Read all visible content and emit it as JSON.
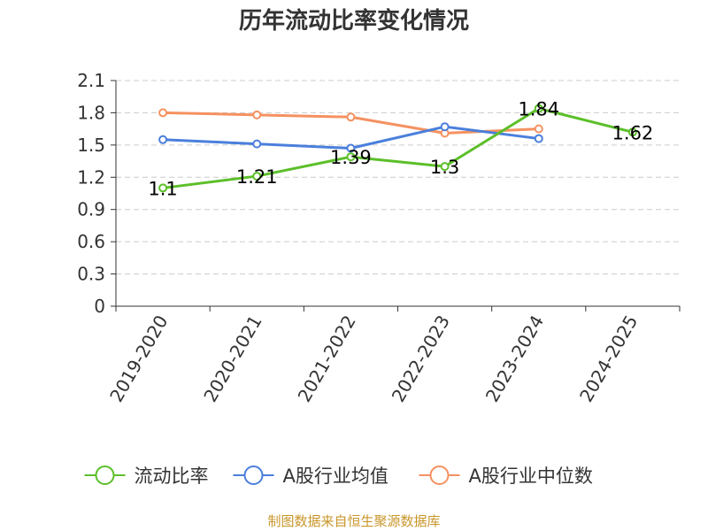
{
  "chart_data": {
    "type": "line",
    "title": "历年流动比率变化情况",
    "categories": [
      "2019-2020",
      "2020-2021",
      "2021-2022",
      "2022-2023",
      "2023-2024",
      "2024-2025"
    ],
    "ylim": [
      0,
      2.1
    ],
    "yticks": [
      "0",
      "0.3",
      "0.6",
      "0.9",
      "1.2",
      "1.5",
      "1.8",
      "2.1"
    ],
    "grid": true,
    "legend_position": "bottom",
    "series": [
      {
        "name": "流动比率",
        "color": "#5cbf2a",
        "values": [
          1.1,
          1.21,
          1.39,
          1.3,
          1.84,
          1.62
        ],
        "labels": [
          "1.1",
          "1.21",
          "1.39",
          "1.3",
          "1.84",
          "1.62"
        ]
      },
      {
        "name": "A股行业均值",
        "color": "#4a7fdc",
        "values": [
          1.55,
          1.51,
          1.47,
          1.67,
          1.56,
          null
        ]
      },
      {
        "name": "A股行业中位数",
        "color": "#f59160",
        "values": [
          1.8,
          1.78,
          1.76,
          1.61,
          1.65,
          null
        ]
      }
    ]
  },
  "source_text": "制图数据来自恒生聚源数据库"
}
